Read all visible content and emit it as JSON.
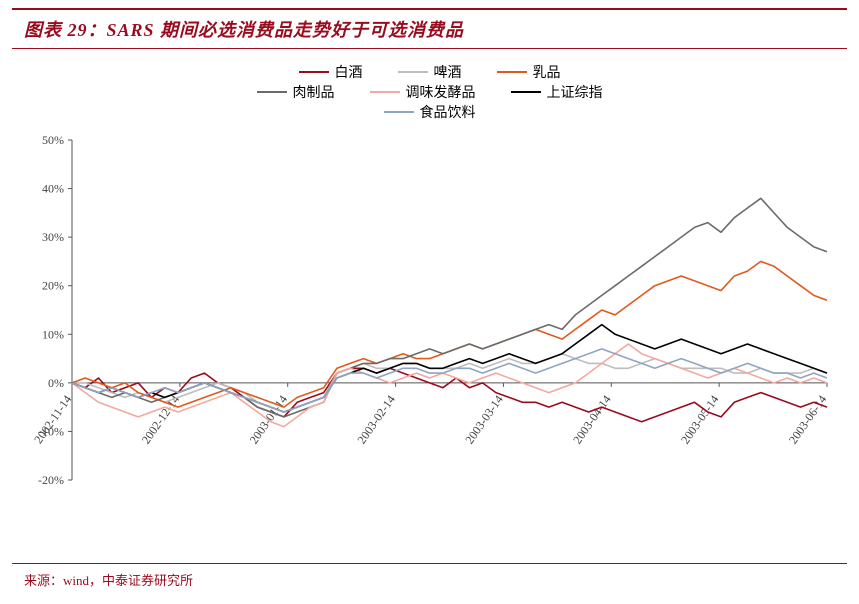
{
  "title_prefix": "图表 29：",
  "title_main": "SARS 期间必选消费品走势好于可选消费品",
  "source_label": "来源：wind，中泰证券研究所",
  "chart": {
    "type": "line",
    "background_color": "#ffffff",
    "ylim": [
      -20,
      50
    ],
    "ytick_step": 10,
    "ytick_format_pct": true,
    "yticks": [
      -20,
      -10,
      0,
      10,
      20,
      30,
      40,
      50
    ],
    "x_categories": [
      "2002-11-14",
      "2002-12-14",
      "2003-01-14",
      "2003-02-14",
      "2003-03-14",
      "2003-04-14",
      "2003-05-14",
      "2003-06-14"
    ],
    "x_label_rotation": -55,
    "axis_color": "#555555",
    "axis_fontsize": 12,
    "grid": false,
    "line_width": 1.6,
    "legend_fontsize": 14,
    "legend_rows": [
      [
        "baijiu",
        "pijiu",
        "rupin"
      ],
      [
        "rouzhipin",
        "tiaoweifajiaopin",
        "shangzhengzongzhi"
      ],
      [
        "shipinyinliao"
      ]
    ],
    "series": {
      "baijiu": {
        "label": "白酒",
        "color": "#9a0b1e",
        "data": [
          0,
          -1,
          1,
          -2,
          -1,
          0,
          -3,
          -1,
          -2,
          1,
          2,
          0,
          -1,
          -3,
          -5,
          -6,
          -7,
          -4,
          -3,
          -2,
          2,
          3,
          3,
          2,
          3,
          2,
          1,
          0,
          -1,
          1,
          -1,
          0,
          -2,
          -3,
          -4,
          -4,
          -5,
          -4,
          -5,
          -6,
          -5,
          -6,
          -7,
          -8,
          -7,
          -6,
          -5,
          -4,
          -6,
          -7,
          -4,
          -3,
          -2,
          -3,
          -4,
          -5,
          -4,
          -5
        ]
      },
      "pijiu": {
        "label": "啤酒",
        "color": "#bdbdbd",
        "data": [
          0,
          0,
          -1,
          -2,
          -3,
          -2,
          -3,
          -4,
          -3,
          -2,
          -1,
          0,
          -1,
          -2,
          -4,
          -5,
          -6,
          -5,
          -4,
          -3,
          2,
          3,
          4,
          3,
          3,
          4,
          4,
          3,
          3,
          3,
          4,
          3,
          4,
          5,
          4,
          4,
          5,
          6,
          5,
          4,
          4,
          3,
          3,
          4,
          5,
          4,
          3,
          3,
          3,
          3,
          2,
          2,
          3,
          2,
          2,
          2,
          3,
          2
        ]
      },
      "rupin": {
        "label": "乳品",
        "color": "#e05a1c",
        "data": [
          0,
          1,
          0,
          -1,
          0,
          -2,
          -3,
          -4,
          -5,
          -4,
          -3,
          -2,
          -1,
          -2,
          -3,
          -4,
          -5,
          -3,
          -2,
          -1,
          3,
          4,
          5,
          4,
          5,
          6,
          5,
          5,
          6,
          7,
          8,
          7,
          8,
          9,
          10,
          11,
          10,
          9,
          11,
          13,
          15,
          14,
          16,
          18,
          20,
          21,
          22,
          21,
          20,
          19,
          22,
          23,
          25,
          24,
          22,
          20,
          18,
          17
        ]
      },
      "rouzhipin": {
        "label": "肉制品",
        "color": "#6b6b6b",
        "data": [
          0,
          -1,
          -2,
          -3,
          -2,
          -3,
          -4,
          -3,
          -2,
          -1,
          0,
          -1,
          -2,
          -3,
          -5,
          -6,
          -7,
          -6,
          -5,
          -4,
          2,
          3,
          4,
          4,
          5,
          5,
          6,
          7,
          6,
          7,
          8,
          7,
          8,
          9,
          10,
          11,
          12,
          11,
          14,
          16,
          18,
          20,
          22,
          24,
          26,
          28,
          30,
          32,
          33,
          31,
          34,
          36,
          38,
          35,
          32,
          30,
          28,
          27
        ]
      },
      "tiaoweifajiaopin": {
        "label": "调味发酵品",
        "color": "#f2a9a0",
        "data": [
          0,
          -2,
          -4,
          -5,
          -6,
          -7,
          -6,
          -5,
          -6,
          -5,
          -4,
          -3,
          -2,
          -4,
          -6,
          -8,
          -9,
          -7,
          -5,
          -4,
          2,
          3,
          2,
          1,
          0,
          1,
          2,
          1,
          2,
          1,
          0,
          1,
          2,
          1,
          0,
          -1,
          -2,
          -1,
          0,
          2,
          4,
          6,
          8,
          6,
          5,
          4,
          3,
          2,
          1,
          2,
          3,
          2,
          1,
          0,
          1,
          0,
          1,
          0
        ]
      },
      "shangzhengzongzhi": {
        "label": "上证综指",
        "color": "#000000",
        "data": [
          0,
          -1,
          -2,
          -1,
          -2,
          -3,
          -2,
          -3,
          -2,
          -1,
          0,
          -1,
          -2,
          -3,
          -4,
          -5,
          -6,
          -5,
          -4,
          -3,
          1,
          2,
          3,
          2,
          3,
          4,
          4,
          3,
          3,
          4,
          5,
          4,
          5,
          6,
          5,
          4,
          5,
          6,
          8,
          10,
          12,
          10,
          9,
          8,
          7,
          8,
          9,
          8,
          7,
          6,
          7,
          8,
          7,
          6,
          5,
          4,
          3,
          2
        ]
      },
      "shipinyinliao": {
        "label": "食品饮料",
        "color": "#8fa6c2",
        "data": [
          0,
          -1,
          -2,
          -1,
          -2,
          -3,
          -2,
          -1,
          -2,
          -1,
          0,
          -1,
          -2,
          -3,
          -4,
          -5,
          -6,
          -5,
          -4,
          -3,
          1,
          2,
          2,
          1,
          2,
          3,
          3,
          2,
          2,
          3,
          3,
          2,
          3,
          4,
          3,
          2,
          3,
          4,
          5,
          6,
          7,
          6,
          5,
          4,
          3,
          4,
          5,
          4,
          3,
          2,
          3,
          4,
          3,
          2,
          2,
          1,
          2,
          1
        ]
      }
    }
  }
}
